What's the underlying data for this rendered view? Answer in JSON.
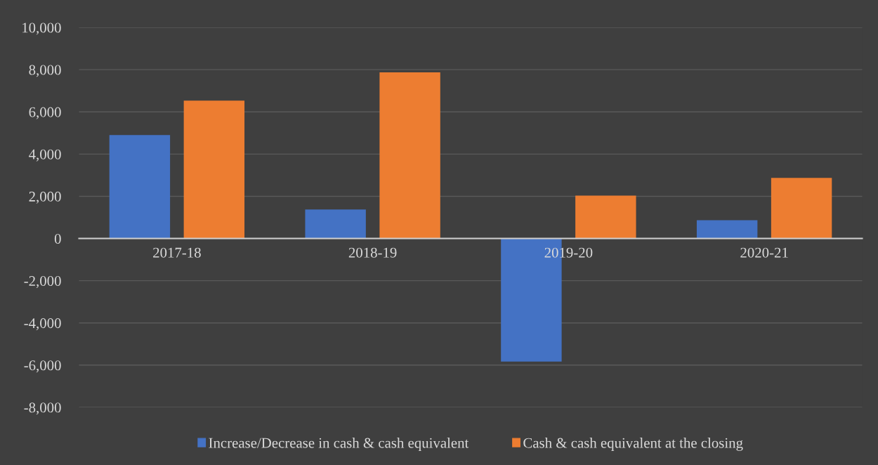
{
  "chart_data": {
    "type": "bar",
    "categories": [
      "2017-18",
      "2018-19",
      "2019-20",
      "2020-21"
    ],
    "series": [
      {
        "name": "Increase/Decrease in cash & cash equivalent",
        "color": "#4472c4",
        "values": [
          4900,
          1370,
          -5830,
          870
        ]
      },
      {
        "name": "Cash & cash equivalent at the closing",
        "color": "#ed7d31",
        "values": [
          6530,
          7870,
          2030,
          2870
        ]
      }
    ],
    "ylim": [
      -8000,
      10000
    ],
    "yticks": [
      {
        "value": -8000,
        "label": "-8,000"
      },
      {
        "value": -6000,
        "label": "-6,000"
      },
      {
        "value": -4000,
        "label": "-4,000"
      },
      {
        "value": -2000,
        "label": "-2,000"
      },
      {
        "value": 0,
        "label": "0"
      },
      {
        "value": 2000,
        "label": "2,000"
      },
      {
        "value": 4000,
        "label": "4,000"
      },
      {
        "value": 6000,
        "label": "6,000"
      },
      {
        "value": 8000,
        "label": "8,000"
      },
      {
        "value": 10000,
        "label": "10,000"
      }
    ],
    "grid": "y",
    "legend": "bottom"
  }
}
